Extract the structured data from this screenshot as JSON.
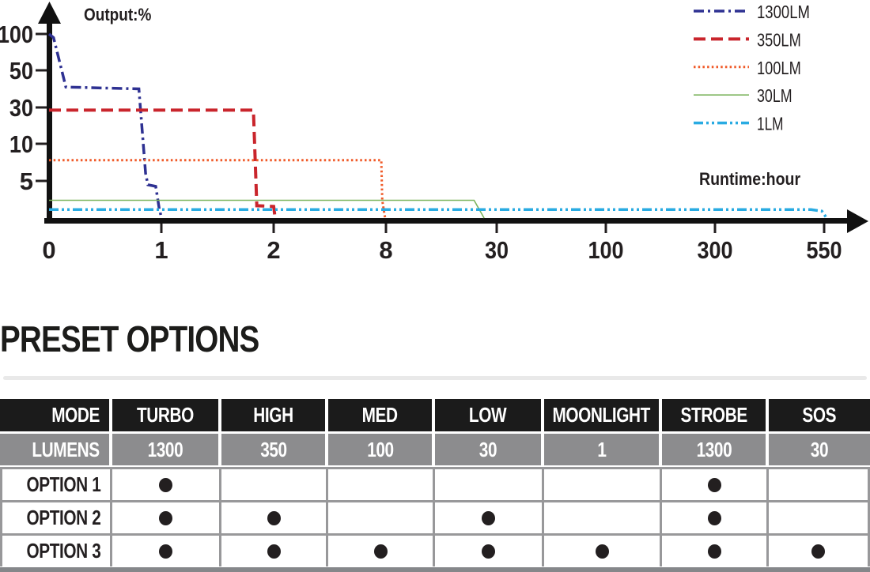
{
  "heading": "PRESET OPTIONS",
  "chart_data": {
    "type": "line",
    "title": "",
    "xlabel": "Runtime:hour",
    "ylabel": "Output:%",
    "x_ticks": [
      0,
      1,
      2,
      8,
      30,
      100,
      300,
      550
    ],
    "y_ticks": [
      100,
      50,
      30,
      10,
      5
    ],
    "x_scale": "segmented-nonlinear",
    "y_scale": "segmented-nonlinear",
    "grid": false,
    "legend_position": "top-right",
    "axis_color": "#111111",
    "text_color": "#231f20",
    "series": [
      {
        "name": "1300LM",
        "color": "#2e3192",
        "style": "dashdot",
        "width": 3.5,
        "points": [
          [
            0,
            100
          ],
          [
            0.04,
            95
          ],
          [
            0.15,
            41
          ],
          [
            0.8,
            40
          ],
          [
            0.86,
            6
          ],
          [
            0.88,
            4.5
          ],
          [
            0.95,
            4.3
          ],
          [
            0.98,
            1.5
          ],
          [
            1.0,
            0.3
          ]
        ]
      },
      {
        "name": "350LM",
        "color": "#c9252c",
        "style": "dash",
        "width": 4,
        "points": [
          [
            0,
            28.5
          ],
          [
            1.82,
            28.5
          ],
          [
            1.85,
            1.8
          ],
          [
            2.0,
            1.7
          ],
          [
            2.04,
            1.0
          ],
          [
            2.08,
            0.1
          ]
        ]
      },
      {
        "name": "100LM",
        "color": "#f05a28",
        "style": "dot",
        "width": 3,
        "points": [
          [
            0,
            7.8
          ],
          [
            7.75,
            7.8
          ],
          [
            7.8,
            2.5
          ],
          [
            7.9,
            1.0
          ],
          [
            7.95,
            0.3
          ]
        ]
      },
      {
        "name": "30LM",
        "color": "#7cb45e",
        "style": "solid",
        "width": 1.6,
        "points": [
          [
            0,
            2.5
          ],
          [
            25.5,
            2.5
          ],
          [
            27.5,
            0.2
          ]
        ]
      },
      {
        "name": "1LM",
        "color": "#29abe2",
        "style": "dashdotdot",
        "width": 3.5,
        "points": [
          [
            0,
            1.3
          ],
          [
            520,
            1.3
          ],
          [
            545,
            1.1
          ],
          [
            556,
            0.2
          ]
        ]
      }
    ]
  },
  "table": {
    "columns": [
      "MODE",
      "TURBO",
      "HIGH",
      "MED",
      "LOW",
      "MOONLIGHT",
      "STROBE",
      "SOS"
    ],
    "lumens_label": "LUMENS",
    "lumens": [
      "1300",
      "350",
      "100",
      "30",
      "1",
      "1300",
      "30"
    ],
    "options": [
      {
        "label": "OPTION 1",
        "modes": [
          true,
          false,
          false,
          false,
          false,
          true,
          false
        ]
      },
      {
        "label": "OPTION 2",
        "modes": [
          true,
          true,
          false,
          true,
          false,
          true,
          false
        ]
      },
      {
        "label": "OPTION 3",
        "modes": [
          true,
          true,
          true,
          true,
          true,
          true,
          true
        ]
      }
    ]
  }
}
